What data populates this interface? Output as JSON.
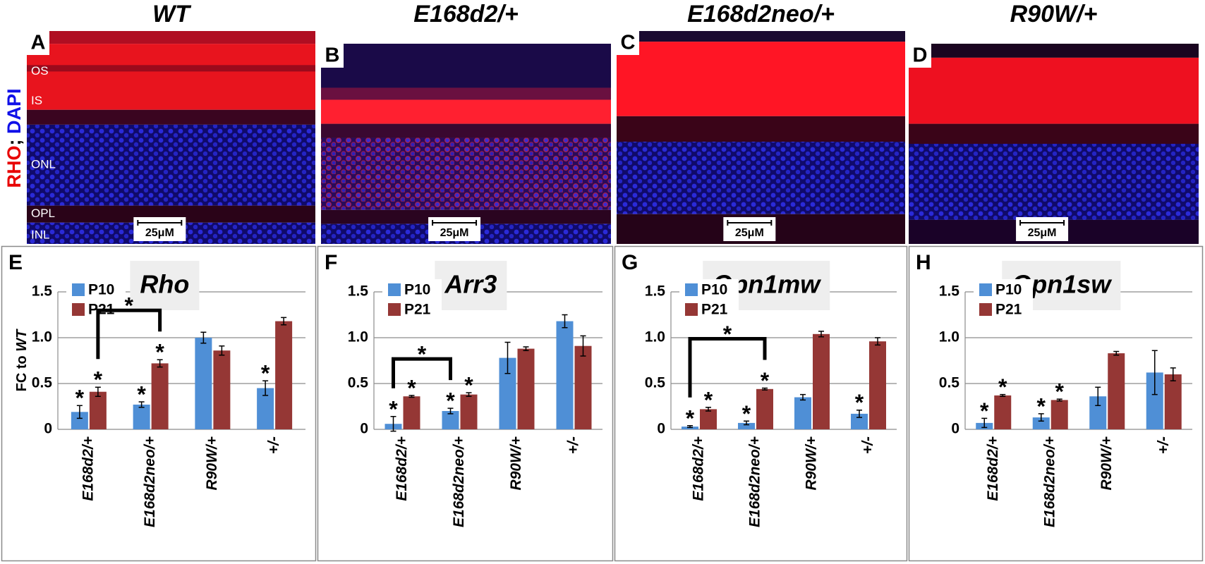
{
  "figure": {
    "stain_label": [
      {
        "text": "RHO",
        "color": "#e80000"
      },
      {
        "text": ";",
        "color": "#000000"
      },
      {
        "text": " DAPI",
        "color": "#1010e8"
      }
    ],
    "image_panels": [
      {
        "letter": "A",
        "title": "WT",
        "scale_bar": "25μM",
        "layers": [
          "OS",
          "IS",
          "ONL",
          "OPL",
          "INL"
        ]
      },
      {
        "letter": "B",
        "title": "E168d2/+",
        "scale_bar": "25μM"
      },
      {
        "letter": "C",
        "title": "E168d2neo/+",
        "scale_bar": "25μM"
      },
      {
        "letter": "D",
        "title": "R90W/+",
        "scale_bar": "25μM"
      }
    ]
  },
  "chart_data": [
    {
      "type": "bar",
      "letter": "E",
      "title": "Rho",
      "ylabel": [
        "FC to ",
        "WT"
      ],
      "categories": [
        "E168d2/+",
        "E168d2neo/+",
        "R90W/+",
        "+/-"
      ],
      "series": [
        {
          "name": "P10",
          "color": "#4f8fd6",
          "values": [
            0.19,
            0.27,
            1.0,
            0.45
          ],
          "errors": [
            0.07,
            0.03,
            0.06,
            0.08
          ],
          "significance": [
            "*",
            "*",
            null,
            "*"
          ]
        },
        {
          "name": "P21",
          "color": "#953735",
          "values": [
            0.41,
            0.72,
            0.86,
            1.18
          ],
          "errors": [
            0.05,
            0.04,
            0.05,
            0.04
          ],
          "significance": [
            "*",
            "*",
            null,
            null
          ]
        }
      ],
      "bracket": {
        "label": "*",
        "from_series": 1,
        "from_index": 0,
        "to_series": 1,
        "to_index": 1
      },
      "ylim": [
        0,
        1.5
      ],
      "yticks": [
        0,
        0.5,
        {
          "value": 1,
          "label": "1.0"
        },
        1.5
      ],
      "grid": true,
      "legend": "upper left"
    },
    {
      "type": "bar",
      "letter": "F",
      "title": "Arr3",
      "categories": [
        "E168d2/+",
        "E168d2neo/+",
        "R90W/+",
        "+/-"
      ],
      "series": [
        {
          "name": "P10",
          "color": "#4f8fd6",
          "values": [
            0.06,
            0.2,
            0.78,
            1.18
          ],
          "errors": [
            0.08,
            0.03,
            0.17,
            0.07
          ],
          "significance": [
            "*",
            "*",
            null,
            null
          ]
        },
        {
          "name": "P21",
          "color": "#953735",
          "values": [
            0.36,
            0.38,
            0.88,
            0.91
          ],
          "errors": [
            0.01,
            0.02,
            0.02,
            0.11
          ],
          "significance": [
            "*",
            "*",
            null,
            null
          ]
        }
      ],
      "bracket": {
        "label": "*",
        "from_series": 0,
        "from_index": 0,
        "to_series": 0,
        "to_index": 1
      },
      "ylim": [
        0,
        1.5
      ],
      "yticks": [
        0,
        0.5,
        {
          "value": 1,
          "label": "1.0"
        },
        1.5
      ],
      "grid": true,
      "legend": "upper left"
    },
    {
      "type": "bar",
      "letter": "G",
      "title": "Opn1mw",
      "categories": [
        "E168d2/+",
        "E168d2neo/+",
        "R90W/+",
        "+/-"
      ],
      "series": [
        {
          "name": "P10",
          "color": "#4f8fd6",
          "values": [
            0.03,
            0.07,
            0.35,
            0.17
          ],
          "errors": [
            0.01,
            0.02,
            0.03,
            0.04
          ],
          "significance": [
            "*",
            "*",
            null,
            "*"
          ]
        },
        {
          "name": "P21",
          "color": "#953735",
          "values": [
            0.22,
            0.44,
            1.04,
            0.96
          ],
          "errors": [
            0.02,
            0.01,
            0.03,
            0.04
          ],
          "significance": [
            "*",
            "*",
            null,
            null
          ]
        }
      ],
      "bracket": {
        "label": "*",
        "from_series": 0,
        "from_index": 0,
        "to_series": 1,
        "to_index": 1
      },
      "ylim": [
        0,
        1.5
      ],
      "yticks": [
        0,
        0.5,
        {
          "value": 1,
          "label": "1.0"
        },
        1.5
      ],
      "grid": true,
      "legend": "upper left"
    },
    {
      "type": "bar",
      "letter": "H",
      "title": "Opn1sw",
      "categories": [
        "E168d2/+",
        "E168d2neo/+",
        "R90W/+",
        "+/-"
      ],
      "series": [
        {
          "name": "P10",
          "color": "#4f8fd6",
          "values": [
            0.07,
            0.13,
            0.36,
            0.62
          ],
          "errors": [
            0.05,
            0.04,
            0.1,
            0.24
          ],
          "significance": [
            "*",
            "*",
            null,
            null
          ]
        },
        {
          "name": "P21",
          "color": "#953735",
          "values": [
            0.37,
            0.32,
            0.83,
            0.6
          ],
          "errors": [
            0.01,
            0.01,
            0.02,
            0.07
          ],
          "significance": [
            "*",
            "*",
            null,
            null
          ]
        }
      ],
      "ylim": [
        0,
        1.5
      ],
      "yticks": [
        0,
        0.5,
        {
          "value": 1,
          "label": "1.0"
        },
        1.5
      ],
      "grid": true,
      "legend": "upper left"
    }
  ]
}
